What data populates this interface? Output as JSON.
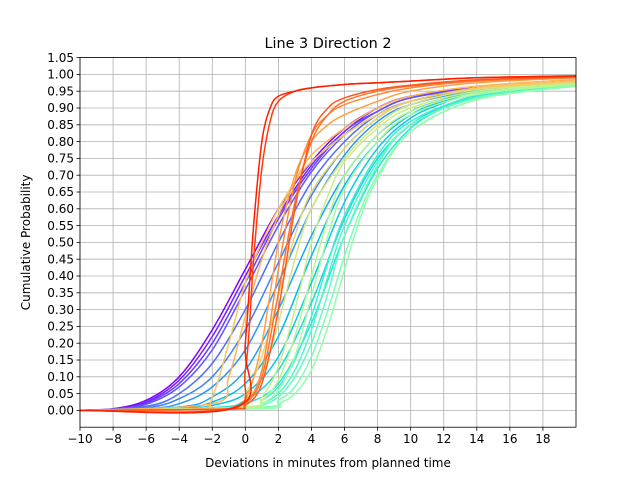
{
  "chart_data": {
    "type": "line",
    "title": "Line 3 Direction 2",
    "xlabel": "Deviations in minutes from planned time",
    "ylabel": "Cumulative Probability",
    "xlim": [
      -10,
      20
    ],
    "ylim": [
      -0.05,
      1.05
    ],
    "x_ticks": [
      -10,
      -8,
      -6,
      -4,
      -2,
      0,
      2,
      4,
      6,
      8,
      10,
      12,
      14,
      16,
      18
    ],
    "x_tick_labels": [
      "−10",
      "−8",
      "−6",
      "−4",
      "−2",
      "0",
      "2",
      "4",
      "6",
      "8",
      "10",
      "12",
      "14",
      "16",
      "18"
    ],
    "y_ticks": [
      0.0,
      0.05,
      0.1,
      0.15,
      0.2,
      0.25,
      0.3,
      0.35,
      0.4,
      0.45,
      0.5,
      0.55,
      0.6,
      0.65,
      0.7,
      0.75,
      0.8,
      0.85,
      0.9,
      0.95,
      1.0,
      1.05
    ],
    "y_tick_labels": [
      "0.00",
      "0.05",
      "0.10",
      "0.15",
      "0.20",
      "0.25",
      "0.30",
      "0.35",
      "0.40",
      "0.45",
      "0.50",
      "0.55",
      "0.60",
      "0.65",
      "0.70",
      "0.75",
      "0.80",
      "0.85",
      "0.90",
      "0.95",
      "1.00",
      "1.05"
    ],
    "grid": true,
    "colormap": "rainbow",
    "series": [
      {
        "color": "#7f00ff",
        "x": [
          -10,
          -8,
          -6,
          -4,
          -2,
          0,
          2,
          4,
          6,
          8,
          10,
          14,
          20
        ],
        "y": [
          0.0,
          0.005,
          0.03,
          0.1,
          0.24,
          0.42,
          0.6,
          0.74,
          0.84,
          0.9,
          0.935,
          0.96,
          0.98
        ]
      },
      {
        "color": "#7520ff",
        "x": [
          -10,
          -8,
          -6,
          -4,
          -2,
          0,
          2,
          4,
          6,
          8,
          10,
          14,
          20
        ],
        "y": [
          0.0,
          0.004,
          0.025,
          0.09,
          0.22,
          0.4,
          0.58,
          0.73,
          0.83,
          0.9,
          0.935,
          0.96,
          0.98
        ]
      },
      {
        "color": "#6a3cfe",
        "x": [
          -10,
          -8,
          -6,
          -4,
          -2,
          0,
          2,
          4,
          6,
          8,
          10,
          14,
          20
        ],
        "y": [
          0.0,
          0.004,
          0.022,
          0.08,
          0.2,
          0.38,
          0.57,
          0.72,
          0.83,
          0.89,
          0.93,
          0.958,
          0.978
        ]
      },
      {
        "color": "#5f55fd",
        "x": [
          -10,
          -8,
          -6,
          -4,
          -2,
          0,
          2,
          4,
          6,
          8,
          10,
          14,
          20
        ],
        "y": [
          0.0,
          0.003,
          0.018,
          0.07,
          0.18,
          0.36,
          0.55,
          0.71,
          0.82,
          0.89,
          0.93,
          0.958,
          0.978
        ]
      },
      {
        "color": "#4e6dfc",
        "x": [
          -10,
          -6,
          -4,
          -2,
          0,
          2,
          4,
          6,
          8,
          10,
          14,
          20
        ],
        "y": [
          0.0,
          0.012,
          0.05,
          0.14,
          0.3,
          0.5,
          0.68,
          0.8,
          0.88,
          0.92,
          0.955,
          0.976
        ]
      },
      {
        "color": "#3d82fa",
        "x": [
          -10,
          -6,
          -4,
          -2,
          0,
          2,
          4,
          6,
          8,
          10,
          14,
          20
        ],
        "y": [
          0.0,
          0.008,
          0.035,
          0.1,
          0.24,
          0.44,
          0.64,
          0.78,
          0.87,
          0.92,
          0.955,
          0.976
        ]
      },
      {
        "color": "#2c96f6",
        "x": [
          -10,
          -6,
          -4,
          -2,
          0,
          2,
          4,
          6,
          8,
          10,
          14,
          20
        ],
        "y": [
          0.0,
          0.005,
          0.02,
          0.07,
          0.18,
          0.38,
          0.6,
          0.76,
          0.86,
          0.91,
          0.952,
          0.975
        ]
      },
      {
        "color": "#1aa8f2",
        "x": [
          -10,
          -4,
          -2,
          0,
          2,
          4,
          6,
          8,
          10,
          12,
          14,
          20
        ],
        "y": [
          0.0,
          0.01,
          0.04,
          0.12,
          0.3,
          0.52,
          0.7,
          0.82,
          0.89,
          0.925,
          0.95,
          0.974
        ]
      },
      {
        "color": "#08b9ee",
        "x": [
          -10,
          -4,
          -2,
          0,
          2,
          4,
          6,
          8,
          10,
          12,
          14,
          20
        ],
        "y": [
          0.0,
          0.006,
          0.025,
          0.08,
          0.22,
          0.46,
          0.67,
          0.8,
          0.88,
          0.92,
          0.948,
          0.972
        ]
      },
      {
        "color": "#0ac8e9",
        "x": [
          -10,
          -4,
          -2,
          0,
          2,
          4,
          6,
          8,
          10,
          12,
          14,
          20
        ],
        "y": [
          0.0,
          0.004,
          0.015,
          0.05,
          0.16,
          0.38,
          0.62,
          0.78,
          0.87,
          0.915,
          0.945,
          0.972
        ]
      },
      {
        "color": "#1cd6e3",
        "x": [
          -10,
          -2,
          0,
          2,
          4,
          6,
          8,
          10,
          12,
          14,
          16,
          20
        ],
        "y": [
          0.0,
          0.008,
          0.03,
          0.12,
          0.32,
          0.57,
          0.75,
          0.85,
          0.905,
          0.938,
          0.955,
          0.97
        ]
      },
      {
        "color": "#2ee3dc",
        "x": [
          -10,
          -2,
          0,
          2,
          4,
          6,
          8,
          10,
          12,
          14,
          16,
          20
        ],
        "y": [
          0.0,
          0.005,
          0.02,
          0.08,
          0.26,
          0.52,
          0.72,
          0.84,
          0.9,
          0.935,
          0.953,
          0.97
        ]
      },
      {
        "color": "#40edd4",
        "x": [
          -10,
          0,
          1,
          2,
          3,
          4,
          5,
          6,
          8,
          10,
          14,
          20
        ],
        "y": [
          0.0,
          0.01,
          0.03,
          0.07,
          0.15,
          0.28,
          0.44,
          0.58,
          0.76,
          0.86,
          0.935,
          0.968
        ]
      },
      {
        "color": "#52f5cb",
        "x": [
          -10,
          0,
          1,
          2,
          3,
          4,
          5,
          6,
          8,
          10,
          14,
          20
        ],
        "y": [
          0.0,
          0.008,
          0.02,
          0.05,
          0.12,
          0.24,
          0.4,
          0.55,
          0.74,
          0.85,
          0.93,
          0.966
        ]
      },
      {
        "color": "#66fbc1",
        "x": [
          -10,
          0,
          1,
          2,
          3,
          4,
          5,
          6,
          8,
          10,
          14,
          20
        ],
        "y": [
          0.0,
          0.005,
          0.015,
          0.04,
          0.1,
          0.2,
          0.35,
          0.52,
          0.73,
          0.85,
          0.93,
          0.966
        ]
      },
      {
        "color": "#7bfeb6",
        "x": [
          -10,
          1,
          2,
          3,
          4,
          5,
          6,
          7,
          8,
          10,
          14,
          20
        ],
        "y": [
          0.0,
          0.01,
          0.03,
          0.07,
          0.16,
          0.3,
          0.46,
          0.6,
          0.7,
          0.83,
          0.925,
          0.965
        ]
      },
      {
        "color": "#90feaa",
        "x": [
          -10,
          1,
          2,
          3,
          4,
          5,
          6,
          7,
          8,
          10,
          14,
          20
        ],
        "y": [
          0.0,
          0.005,
          0.02,
          0.05,
          0.12,
          0.25,
          0.42,
          0.58,
          0.69,
          0.83,
          0.925,
          0.965
        ]
      },
      {
        "color": "#a2fba0",
        "x": [
          -10,
          0,
          1,
          2,
          3,
          4,
          5,
          6,
          8,
          10,
          14,
          20
        ],
        "y": [
          0.0,
          0.005,
          0.02,
          0.06,
          0.16,
          0.34,
          0.52,
          0.66,
          0.8,
          0.88,
          0.94,
          0.97
        ]
      },
      {
        "color": "#b4f695",
        "x": [
          -10,
          0,
          1,
          2,
          3,
          4,
          5,
          6,
          8,
          10,
          14,
          20
        ],
        "y": [
          0.0,
          0.008,
          0.03,
          0.09,
          0.22,
          0.4,
          0.57,
          0.7,
          0.82,
          0.89,
          0.945,
          0.972
        ]
      },
      {
        "color": "#c6ef89",
        "x": [
          -10,
          0,
          1,
          2,
          3,
          4,
          5,
          6,
          8,
          10,
          14,
          20
        ],
        "y": [
          0.0,
          0.01,
          0.04,
          0.13,
          0.3,
          0.5,
          0.64,
          0.74,
          0.84,
          0.9,
          0.95,
          0.974
        ]
      },
      {
        "color": "#d6e47c",
        "x": [
          -10,
          -1,
          0,
          1,
          2,
          3,
          4,
          6,
          8,
          10,
          14,
          20
        ],
        "y": [
          0.0,
          0.005,
          0.03,
          0.1,
          0.26,
          0.45,
          0.6,
          0.75,
          0.85,
          0.91,
          0.955,
          0.976
        ]
      },
      {
        "color": "#e6d66f",
        "x": [
          -10,
          -1,
          0,
          1,
          2,
          3,
          4,
          6,
          8,
          10,
          14,
          20
        ],
        "y": [
          0.0,
          0.008,
          0.05,
          0.16,
          0.34,
          0.52,
          0.65,
          0.78,
          0.87,
          0.92,
          0.958,
          0.978
        ]
      },
      {
        "color": "#f4c762",
        "x": [
          -10,
          -3,
          -2,
          -1,
          0,
          1,
          2,
          3,
          4,
          6,
          8,
          10,
          14,
          20
        ],
        "y": [
          0.0,
          0.005,
          0.04,
          0.2,
          0.38,
          0.5,
          0.6,
          0.68,
          0.74,
          0.82,
          0.88,
          0.92,
          0.96,
          0.98
        ]
      },
      {
        "color": "#ffb455",
        "x": [
          -10,
          -2,
          -1,
          0,
          1,
          2,
          3,
          4,
          6,
          8,
          10,
          14,
          20
        ],
        "y": [
          0.0,
          0.02,
          0.1,
          0.28,
          0.45,
          0.58,
          0.68,
          0.76,
          0.84,
          0.9,
          0.935,
          0.965,
          0.985
        ]
      },
      {
        "color": "#ffa047",
        "x": [
          -10,
          -1,
          0,
          1,
          2,
          3,
          4,
          5,
          6,
          8,
          10,
          14,
          20
        ],
        "y": [
          0.0,
          0.005,
          0.03,
          0.2,
          0.5,
          0.7,
          0.8,
          0.85,
          0.88,
          0.92,
          0.95,
          0.975,
          0.99
        ]
      },
      {
        "color": "#ff8a3a",
        "x": [
          -10,
          -1,
          0,
          1,
          2,
          3,
          4,
          5,
          6,
          8,
          10,
          14,
          20
        ],
        "y": [
          0.0,
          0.004,
          0.02,
          0.12,
          0.42,
          0.68,
          0.82,
          0.88,
          0.91,
          0.94,
          0.96,
          0.98,
          0.99
        ]
      },
      {
        "color": "#ff722c",
        "x": [
          -10,
          -1,
          0,
          1,
          2,
          3,
          4,
          5,
          6,
          8,
          10,
          14,
          20
        ],
        "y": [
          0.0,
          0.004,
          0.02,
          0.1,
          0.35,
          0.62,
          0.8,
          0.88,
          0.92,
          0.95,
          0.965,
          0.982,
          0.992
        ]
      },
      {
        "color": "#ff581e",
        "x": [
          -10,
          -1,
          0,
          1,
          2,
          3,
          4,
          5,
          6,
          8,
          10,
          14,
          20
        ],
        "y": [
          0.0,
          0.004,
          0.015,
          0.08,
          0.3,
          0.6,
          0.82,
          0.9,
          0.93,
          0.955,
          0.968,
          0.984,
          0.994
        ]
      },
      {
        "color": "#ff3c0f",
        "x": [
          -10,
          -1,
          0,
          0.5,
          1,
          1.5,
          2,
          3,
          4,
          6,
          8,
          10,
          14,
          20
        ],
        "y": [
          0.0,
          0.005,
          0.12,
          0.45,
          0.72,
          0.86,
          0.92,
          0.95,
          0.96,
          0.97,
          0.975,
          0.98,
          0.99,
          0.995
        ]
      },
      {
        "color": "#ff1e00",
        "x": [
          -10,
          -0.5,
          0,
          0.5,
          1,
          1.5,
          2,
          3,
          4,
          6,
          8,
          10,
          14,
          20
        ],
        "y": [
          0.0,
          0.01,
          0.2,
          0.55,
          0.8,
          0.9,
          0.935,
          0.95,
          0.96,
          0.97,
          0.975,
          0.98,
          0.99,
          0.996
        ]
      }
    ]
  }
}
